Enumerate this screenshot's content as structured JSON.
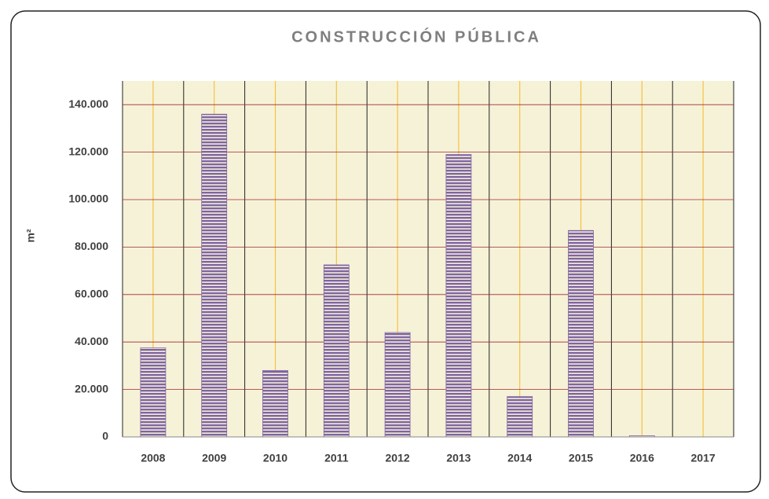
{
  "chart_data": {
    "type": "bar",
    "title": "CONSTRUCCIÓN PÚBLICA",
    "y_label": "m²",
    "categories": [
      "2008",
      "2009",
      "2010",
      "2011",
      "2012",
      "2013",
      "2014",
      "2015",
      "2016",
      "2017"
    ],
    "values": [
      37500,
      136000,
      28000,
      72500,
      44000,
      119000,
      17000,
      87000,
      500,
      0
    ],
    "color": "#8064a2",
    "ylim": [
      0,
      150000
    ],
    "yticks": [
      0,
      {
        "value": 20000,
        "label": "20.000"
      },
      {
        "value": 40000,
        "label": "40.000"
      },
      {
        "value": 60000,
        "label": "60.000"
      },
      {
        "value": 80000,
        "label": "80.000"
      },
      {
        "value": 100000,
        "label": "100.000"
      },
      {
        "value": 120000,
        "label": "120.000"
      },
      {
        "value": 140000,
        "label": "140.000"
      }
    ],
    "grid": true
  }
}
